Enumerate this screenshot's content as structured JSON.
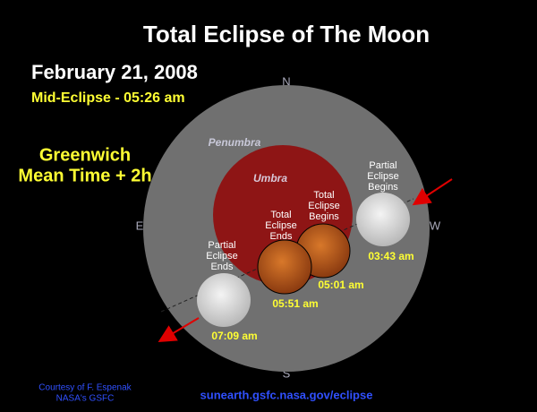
{
  "header": {
    "title": "Total Eclipse of The Moon",
    "date": "February 21, 2008",
    "mid_eclipse": "Mid-Eclipse - 05:26 am",
    "timezone": [
      "Greenwich",
      "Mean Time + 2h"
    ]
  },
  "compass": {
    "n": "N",
    "e": "E",
    "s": "S",
    "w": "W"
  },
  "regions": {
    "penumbra": "Penumbra",
    "umbra": "Umbra"
  },
  "events": [
    {
      "label": [
        "Partial",
        "Eclipse",
        "Begins"
      ],
      "time": "03:43 am"
    },
    {
      "label": [
        "Total",
        "Eclipse",
        "Begins"
      ],
      "time": "05:01 am"
    },
    {
      "label": [
        "Total",
        "Eclipse",
        "Ends"
      ],
      "time": "05:51 am"
    },
    {
      "label": [
        "Partial",
        "Eclipse",
        "Ends"
      ],
      "time": "07:09 am"
    }
  ],
  "footer": {
    "credit": [
      "Courtesy of F. Espenak",
      "NASA's GSFC"
    ],
    "url": "sunearth.gsfc.nasa.gov/eclipse"
  }
}
